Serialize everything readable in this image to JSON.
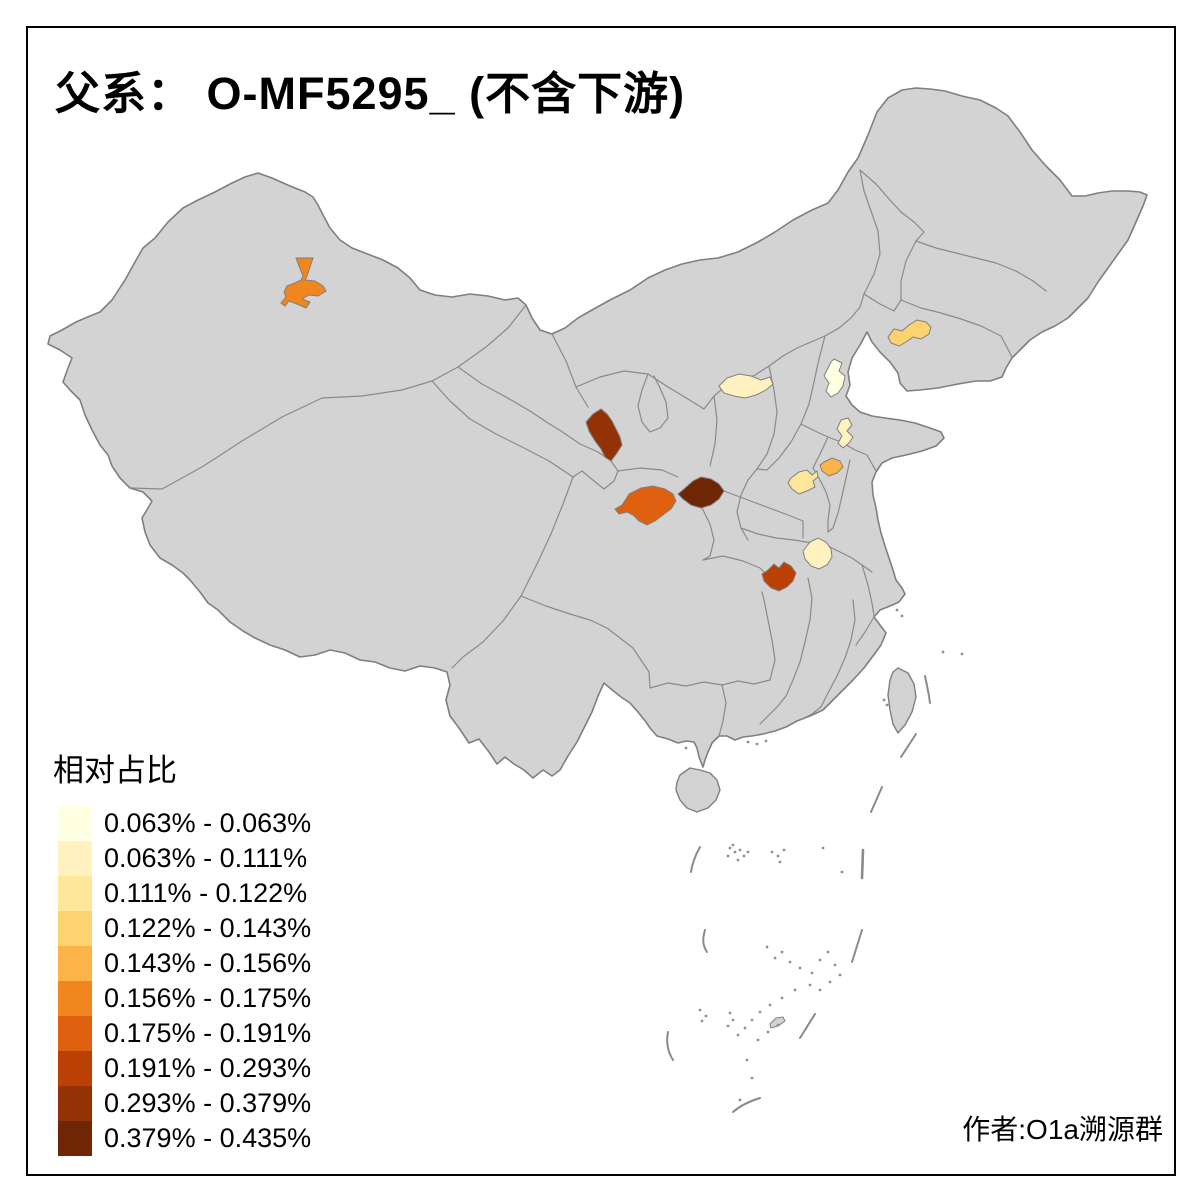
{
  "title": "父系： O-MF5295_ (不含下游)",
  "attribution": "作者:O1a溯源群",
  "legend": {
    "title": "相对占比",
    "items": [
      {
        "label": "0.063% - 0.063%",
        "color": "#FFFFE2"
      },
      {
        "label": "0.063% - 0.111%",
        "color": "#FFF2C0"
      },
      {
        "label": "0.111% - 0.122%",
        "color": "#FEE79B"
      },
      {
        "label": "0.122% - 0.143%",
        "color": "#FDD271"
      },
      {
        "label": "0.143% - 0.156%",
        "color": "#FCB348"
      },
      {
        "label": "0.156% - 0.175%",
        "color": "#F1861F"
      },
      {
        "label": "0.175% - 0.191%",
        "color": "#DF600F"
      },
      {
        "label": "0.191% - 0.293%",
        "color": "#BB4004"
      },
      {
        "label": "0.293% - 0.379%",
        "color": "#933305"
      },
      {
        "label": "0.379% - 0.435%",
        "color": "#6E2605"
      }
    ]
  },
  "map": {
    "base_fill": "#D3D3D3",
    "border_color": "#7F7F7F",
    "regions": [
      {
        "name": "beijing",
        "class_index": 0,
        "value_range": "0.063% - 0.063%"
      },
      {
        "name": "shanxi-north",
        "class_index": 1,
        "value_range": "0.063% - 0.111%"
      },
      {
        "name": "shandong-west",
        "class_index": 1,
        "value_range": "0.063% - 0.111%"
      },
      {
        "name": "hubei-central",
        "class_index": 1,
        "value_range": "0.063% - 0.111%"
      },
      {
        "name": "henan-southeast",
        "class_index": 2,
        "value_range": "0.111% - 0.122%"
      },
      {
        "name": "liaoning-central",
        "class_index": 3,
        "value_range": "0.122% - 0.143%"
      },
      {
        "name": "anhui-north",
        "class_index": 4,
        "value_range": "0.143% - 0.156%"
      },
      {
        "name": "xinjiang-changji",
        "class_index": 5,
        "value_range": "0.156% - 0.175%"
      },
      {
        "name": "gansu-southeast",
        "class_index": 6,
        "value_range": "0.175% - 0.191%"
      },
      {
        "name": "chongqing-southeast",
        "class_index": 7,
        "value_range": "0.191% - 0.293%"
      },
      {
        "name": "gansu-central",
        "class_index": 8,
        "value_range": "0.293% - 0.379%"
      },
      {
        "name": "shaanxi-south",
        "class_index": 9,
        "value_range": "0.379% - 0.435%"
      }
    ]
  },
  "chart_data": {
    "type": "choropleth-map",
    "title": "父系： O-MF5295_ (不含下游)",
    "legend_title": "相对占比",
    "classes": [
      "0.063% - 0.063%",
      "0.063% - 0.111%",
      "0.111% - 0.122%",
      "0.122% - 0.143%",
      "0.143% - 0.156%",
      "0.156% - 0.175%",
      "0.175% - 0.191%",
      "0.191% - 0.293%",
      "0.293% - 0.379%",
      "0.379% - 0.435%"
    ],
    "value_min": "0.063%",
    "value_max": "0.435%"
  }
}
